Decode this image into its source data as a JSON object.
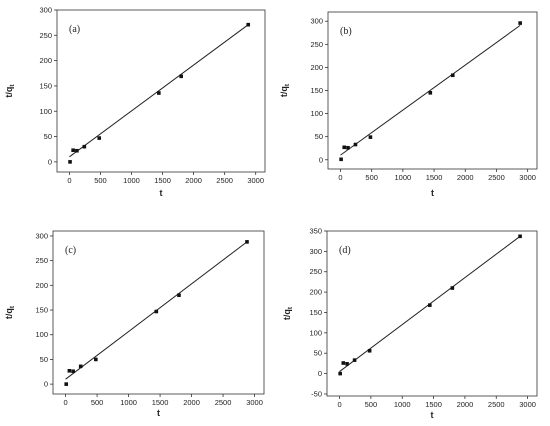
{
  "chart_data": [
    {
      "type": "scatter",
      "panel_label": "(a)",
      "xlabel": "t",
      "ylabel": "t/q",
      "ylabel_sub": "t",
      "xlim": [
        -200,
        3150
      ],
      "ylim": [
        -20,
        300
      ],
      "xticks": [
        0,
        500,
        1000,
        1500,
        2000,
        2500,
        3000
      ],
      "yticks": [
        0,
        50,
        100,
        150,
        200,
        250,
        300
      ],
      "points": [
        [
          10,
          0
        ],
        [
          60,
          23
        ],
        [
          120,
          22
        ],
        [
          240,
          30
        ],
        [
          480,
          47
        ],
        [
          1440,
          136
        ],
        [
          1800,
          169
        ],
        [
          2880,
          271
        ]
      ],
      "fit_line": [
        [
          0,
          10
        ],
        [
          2880,
          271
        ]
      ]
    },
    {
      "type": "scatter",
      "panel_label": "(b)",
      "xlabel": "t",
      "ylabel": "t/q",
      "ylabel_sub": "t",
      "xlim": [
        -200,
        3150
      ],
      "ylim": [
        -20,
        320
      ],
      "xticks": [
        0,
        500,
        1000,
        1500,
        2000,
        2500,
        3000
      ],
      "yticks": [
        0,
        50,
        100,
        150,
        200,
        250,
        300
      ],
      "points": [
        [
          10,
          1
        ],
        [
          60,
          27
        ],
        [
          120,
          26
        ],
        [
          240,
          33
        ],
        [
          480,
          49
        ],
        [
          1440,
          145
        ],
        [
          1800,
          183
        ],
        [
          2880,
          296
        ]
      ],
      "fit_line": [
        [
          0,
          10
        ],
        [
          2880,
          291
        ]
      ]
    },
    {
      "type": "scatter",
      "panel_label": "(c)",
      "xlabel": "t",
      "ylabel": "t/q",
      "ylabel_sub": "t",
      "xlim": [
        -200,
        3150
      ],
      "ylim": [
        -20,
        310
      ],
      "xticks": [
        0,
        500,
        1000,
        1500,
        2000,
        2500,
        3000
      ],
      "yticks": [
        0,
        50,
        100,
        150,
        200,
        250,
        300
      ],
      "points": [
        [
          10,
          0
        ],
        [
          60,
          27
        ],
        [
          120,
          26
        ],
        [
          240,
          36
        ],
        [
          480,
          50
        ],
        [
          1440,
          147
        ],
        [
          1800,
          180
        ],
        [
          2880,
          288
        ]
      ],
      "fit_line": [
        [
          0,
          10
        ],
        [
          2880,
          288
        ]
      ]
    },
    {
      "type": "scatter",
      "panel_label": "(d)",
      "xlabel": "t",
      "ylabel": "t/q",
      "ylabel_sub": "t",
      "xlim": [
        -200,
        3150
      ],
      "ylim": [
        -55,
        350
      ],
      "xticks": [
        0,
        500,
        1000,
        1500,
        2000,
        2500,
        3000
      ],
      "yticks": [
        -50,
        0,
        50,
        100,
        150,
        200,
        250,
        300,
        350
      ],
      "points": [
        [
          10,
          0
        ],
        [
          60,
          26
        ],
        [
          120,
          24
        ],
        [
          240,
          33
        ],
        [
          480,
          56
        ],
        [
          1440,
          168
        ],
        [
          1800,
          210
        ],
        [
          2880,
          337
        ]
      ],
      "fit_line": [
        [
          0,
          5
        ],
        [
          2880,
          337
        ]
      ]
    }
  ]
}
